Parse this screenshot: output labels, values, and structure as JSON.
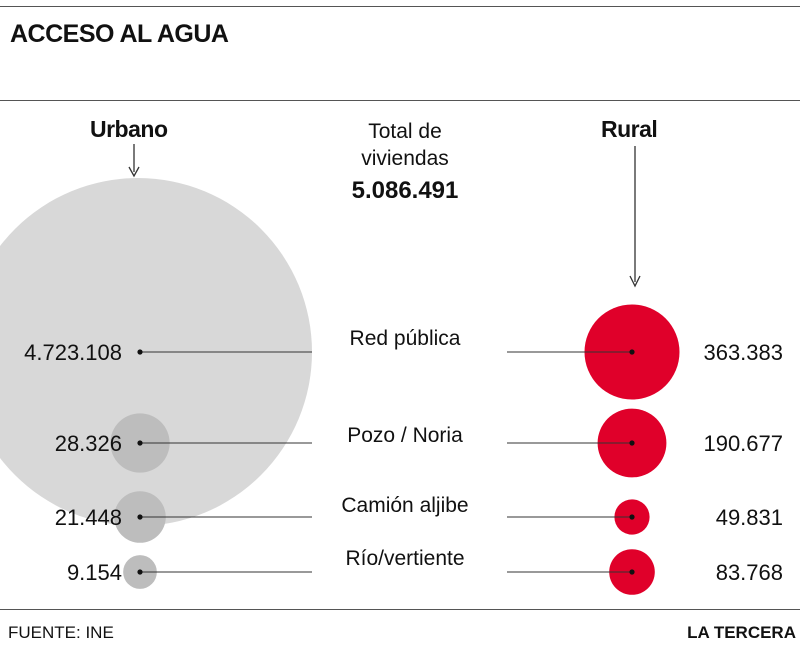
{
  "title": "ACCESO AL AGUA",
  "urban_label": "Urbano",
  "rural_label": "Rural",
  "total": {
    "label_line1": "Total de",
    "label_line2": "viviendas",
    "value": "5.086.491"
  },
  "source": "FUENTE: INE",
  "brand": "LA TERCERA",
  "colors": {
    "urban": "#d8d8d8",
    "urban_small": "#bdbdbd",
    "rural": "#e0002a",
    "line": "#333333",
    "rule": "#555555"
  },
  "chart_data": {
    "type": "bubble",
    "title": "ACCESO AL AGUA",
    "total_dwellings": 5086491,
    "categories": [
      "Red pública",
      "Pozo / Noria",
      "Camión aljibe",
      "Río/vertiente"
    ],
    "series": [
      {
        "name": "Urbano",
        "values": [
          4723108,
          28326,
          21448,
          9154
        ],
        "labels": [
          "4.723.108",
          "28.326",
          "21.448",
          "9.154"
        ]
      },
      {
        "name": "Rural",
        "values": [
          363383,
          190677,
          49831,
          83768
        ],
        "labels": [
          "363.383",
          "190.677",
          "49.831",
          "83.768"
        ]
      }
    ]
  }
}
